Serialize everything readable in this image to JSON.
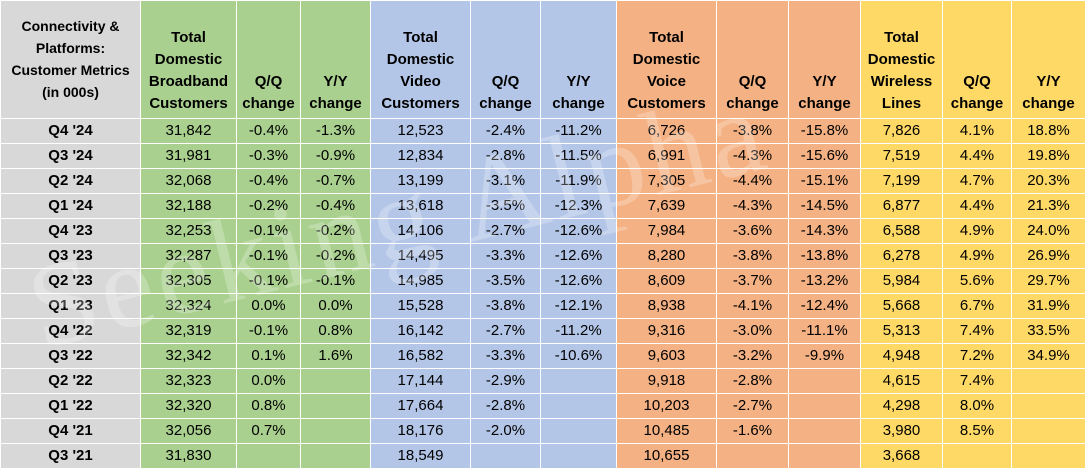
{
  "header": {
    "corner": "Connectivity & Platforms: Customer Metrics (in 000s)",
    "broadband": "Total Domestic Broadband Customers",
    "video": "Total Domestic Video Customers",
    "voice": "Total Domestic Voice Customers",
    "wireless": "Total Domestic Wireless Lines",
    "qq": "Q/Q change",
    "yy": "Y/Y change"
  },
  "colors": {
    "label": "#d8d8d8",
    "broadband": "#a9d08e",
    "video": "#b4c6e7",
    "voice": "#f4b183",
    "wireless": "#ffd966"
  },
  "rows": [
    {
      "q": "Q4 '24",
      "bb": "31,842",
      "bb_qq": "-0.4%",
      "bb_yy": "-1.3%",
      "v": "12,523",
      "v_qq": "-2.4%",
      "v_yy": "-11.2%",
      "vo": "6,726",
      "vo_qq": "-3.8%",
      "vo_yy": "-15.8%",
      "w": "7,826",
      "w_qq": "4.1%",
      "w_yy": "18.8%"
    },
    {
      "q": "Q3 '24",
      "bb": "31,981",
      "bb_qq": "-0.3%",
      "bb_yy": "-0.9%",
      "v": "12,834",
      "v_qq": "-2.8%",
      "v_yy": "-11.5%",
      "vo": "6,991",
      "vo_qq": "-4.3%",
      "vo_yy": "-15.6%",
      "w": "7,519",
      "w_qq": "4.4%",
      "w_yy": "19.8%"
    },
    {
      "q": "Q2 '24",
      "bb": "32,068",
      "bb_qq": "-0.4%",
      "bb_yy": "-0.7%",
      "v": "13,199",
      "v_qq": "-3.1%",
      "v_yy": "-11.9%",
      "vo": "7,305",
      "vo_qq": "-4.4%",
      "vo_yy": "-15.1%",
      "w": "7,199",
      "w_qq": "4.7%",
      "w_yy": "20.3%"
    },
    {
      "q": "Q1 '24",
      "bb": "32,188",
      "bb_qq": "-0.2%",
      "bb_yy": "-0.4%",
      "v": "13,618",
      "v_qq": "-3.5%",
      "v_yy": "-12.3%",
      "vo": "7,639",
      "vo_qq": "-4.3%",
      "vo_yy": "-14.5%",
      "w": "6,877",
      "w_qq": "4.4%",
      "w_yy": "21.3%"
    },
    {
      "q": "Q4 '23",
      "bb": "32,253",
      "bb_qq": "-0.1%",
      "bb_yy": "-0.2%",
      "v": "14,106",
      "v_qq": "-2.7%",
      "v_yy": "-12.6%",
      "vo": "7,984",
      "vo_qq": "-3.6%",
      "vo_yy": "-14.3%",
      "w": "6,588",
      "w_qq": "4.9%",
      "w_yy": "24.0%"
    },
    {
      "q": "Q3 '23",
      "bb": "32,287",
      "bb_qq": "-0.1%",
      "bb_yy": "-0.2%",
      "v": "14,495",
      "v_qq": "-3.3%",
      "v_yy": "-12.6%",
      "vo": "8,280",
      "vo_qq": "-3.8%",
      "vo_yy": "-13.8%",
      "w": "6,278",
      "w_qq": "4.9%",
      "w_yy": "26.9%"
    },
    {
      "q": "Q2 '23",
      "bb": "32,305",
      "bb_qq": "-0.1%",
      "bb_yy": "-0.1%",
      "v": "14,985",
      "v_qq": "-3.5%",
      "v_yy": "-12.6%",
      "vo": "8,609",
      "vo_qq": "-3.7%",
      "vo_yy": "-13.2%",
      "w": "5,984",
      "w_qq": "5.6%",
      "w_yy": "29.7%"
    },
    {
      "q": "Q1 '23",
      "bb": "32,324",
      "bb_qq": "0.0%",
      "bb_yy": "0.0%",
      "v": "15,528",
      "v_qq": "-3.8%",
      "v_yy": "-12.1%",
      "vo": "8,938",
      "vo_qq": "-4.1%",
      "vo_yy": "-12.4%",
      "w": "5,668",
      "w_qq": "6.7%",
      "w_yy": "31.9%"
    },
    {
      "q": "Q4 '22",
      "bb": "32,319",
      "bb_qq": "-0.1%",
      "bb_yy": "0.8%",
      "v": "16,142",
      "v_qq": "-2.7%",
      "v_yy": "-11.2%",
      "vo": "9,316",
      "vo_qq": "-3.0%",
      "vo_yy": "-11.1%",
      "w": "5,313",
      "w_qq": "7.4%",
      "w_yy": "33.5%"
    },
    {
      "q": "Q3 '22",
      "bb": "32,342",
      "bb_qq": "0.1%",
      "bb_yy": "1.6%",
      "v": "16,582",
      "v_qq": "-3.3%",
      "v_yy": "-10.6%",
      "vo": "9,603",
      "vo_qq": "-3.2%",
      "vo_yy": "-9.9%",
      "w": "4,948",
      "w_qq": "7.2%",
      "w_yy": "34.9%"
    },
    {
      "q": "Q2 '22",
      "bb": "32,323",
      "bb_qq": "0.0%",
      "bb_yy": "",
      "v": "17,144",
      "v_qq": "-2.9%",
      "v_yy": "",
      "vo": "9,918",
      "vo_qq": "-2.8%",
      "vo_yy": "",
      "w": "4,615",
      "w_qq": "7.4%",
      "w_yy": ""
    },
    {
      "q": "Q1 '22",
      "bb": "32,320",
      "bb_qq": "0.8%",
      "bb_yy": "",
      "v": "17,664",
      "v_qq": "-2.8%",
      "v_yy": "",
      "vo": "10,203",
      "vo_qq": "-2.7%",
      "vo_yy": "",
      "w": "4,298",
      "w_qq": "8.0%",
      "w_yy": ""
    },
    {
      "q": "Q4 '21",
      "bb": "32,056",
      "bb_qq": "0.7%",
      "bb_yy": "",
      "v": "18,176",
      "v_qq": "-2.0%",
      "v_yy": "",
      "vo": "10,485",
      "vo_qq": "-1.6%",
      "vo_yy": "",
      "w": "3,980",
      "w_qq": "8.5%",
      "w_yy": ""
    },
    {
      "q": "Q3 '21",
      "bb": "31,830",
      "bb_qq": "",
      "bb_yy": "",
      "v": "18,549",
      "v_qq": "",
      "v_yy": "",
      "vo": "10,655",
      "vo_qq": "",
      "vo_yy": "",
      "w": "3,668",
      "w_qq": "",
      "w_yy": ""
    }
  ]
}
